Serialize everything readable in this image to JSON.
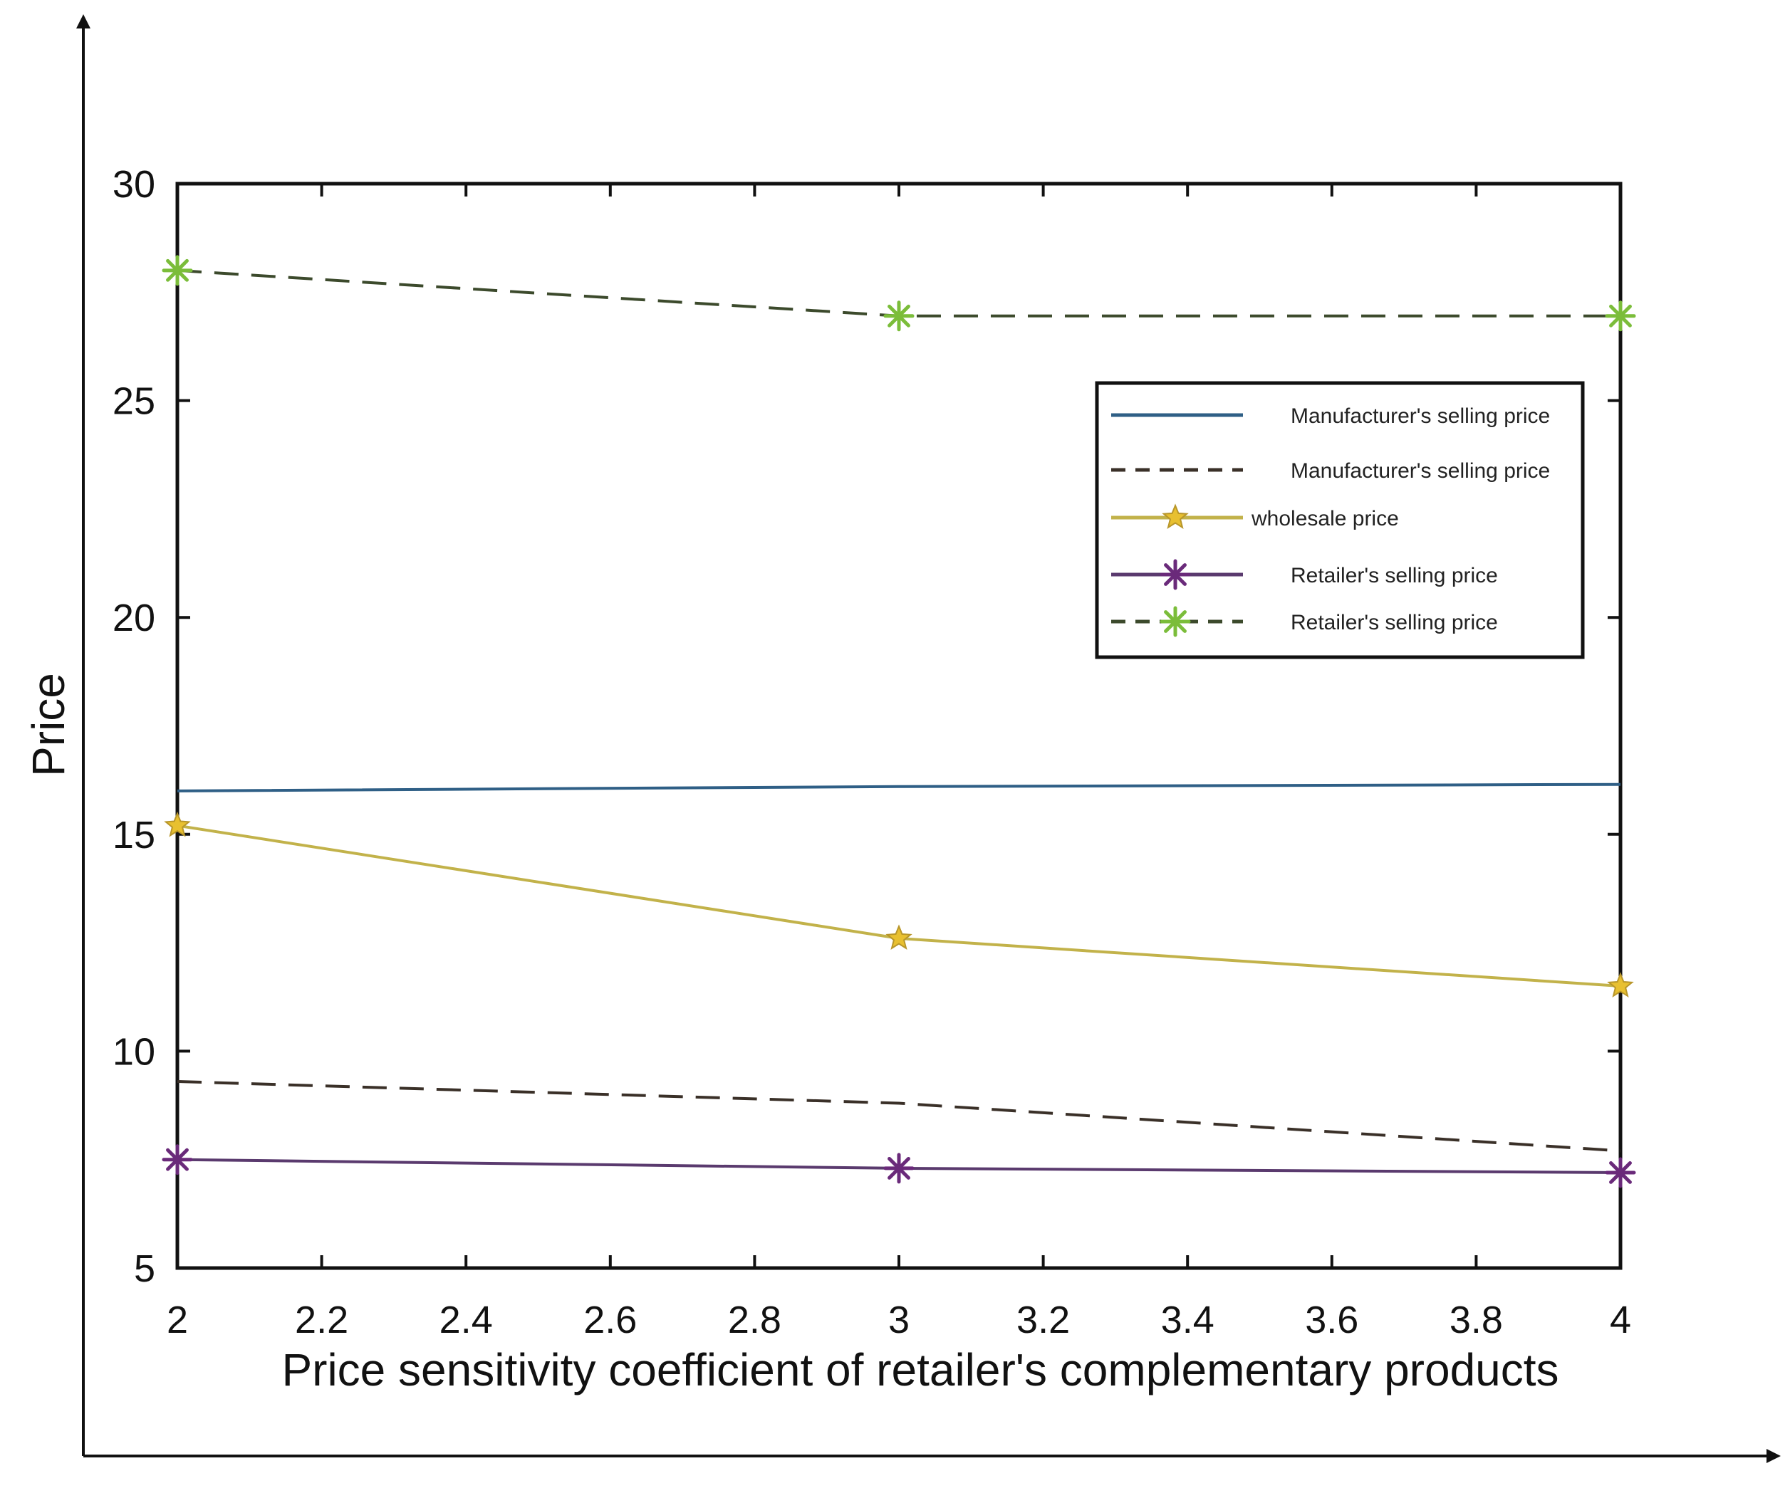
{
  "chart_data": {
    "type": "line",
    "title": "",
    "xlabel": "Price sensitivity coefficient of retailer's complementary products",
    "ylabel": "Price",
    "xlim": [
      2,
      4
    ],
    "ylim": [
      5,
      30
    ],
    "x_ticks": [
      2,
      2.2,
      2.4,
      2.6,
      2.8,
      3,
      3.2,
      3.4,
      3.6,
      3.8,
      4
    ],
    "x_tick_labels": [
      "2",
      "2.2",
      "2.4",
      "2.6",
      "2.8",
      "3",
      "3.2",
      "3.4",
      "3.6",
      "3.8",
      "4"
    ],
    "y_ticks": [
      5,
      10,
      15,
      20,
      25,
      30
    ],
    "y_tick_labels": [
      "5",
      "10",
      "15",
      "20",
      "25",
      "30"
    ],
    "grid": false,
    "legend_position": "top-right",
    "series": [
      {
        "name": "Manufacturer's selling price",
        "x": [
          2,
          3,
          4
        ],
        "values": [
          16.0,
          16.1,
          16.15
        ],
        "color": "#2f5f86",
        "line": "solid",
        "marker": "none"
      },
      {
        "name": "Manufacturer's selling price",
        "x": [
          2,
          3,
          4
        ],
        "values": [
          9.3,
          8.8,
          7.7
        ],
        "color": "#3a3028",
        "line": "dashed",
        "marker": "none"
      },
      {
        "name": "wholesale price",
        "x": [
          2,
          3,
          4
        ],
        "values": [
          15.2,
          12.6,
          11.5
        ],
        "color": "#c2b24a",
        "line": "solid",
        "marker": "star",
        "marker_color": "#e8c030"
      },
      {
        "name": "Retailer's selling price",
        "x": [
          2,
          3,
          4
        ],
        "values": [
          7.5,
          7.3,
          7.2
        ],
        "color": "#5a3a6e",
        "line": "solid",
        "marker": "asterisk",
        "marker_color": "#6a2a7a"
      },
      {
        "name": "Retailer's selling price",
        "x": [
          2,
          3,
          4
        ],
        "values": [
          28.0,
          26.95,
          26.95
        ],
        "color": "#3c4a2c",
        "line": "dashed",
        "marker": "asterisk",
        "marker_color": "#7bbd3a"
      }
    ]
  }
}
